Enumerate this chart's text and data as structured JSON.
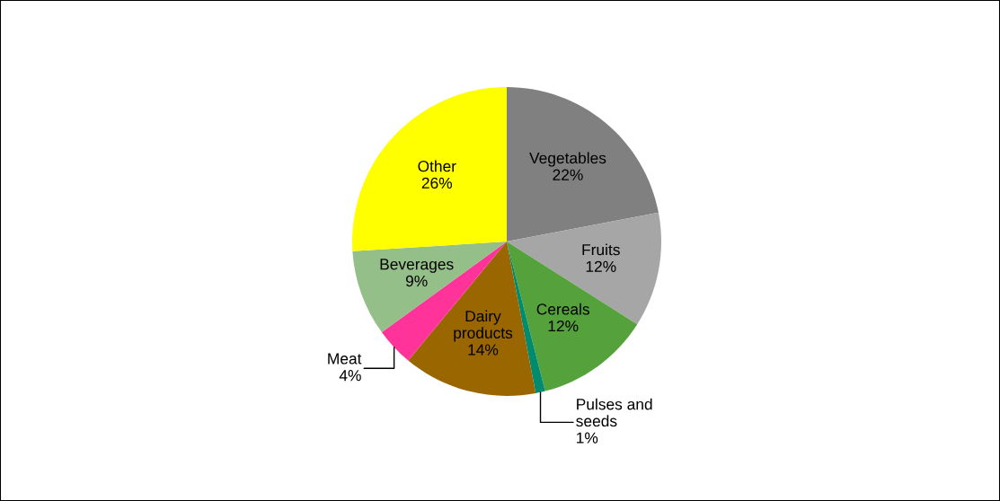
{
  "chart_data": {
    "type": "pie",
    "categories": [
      "Vegetables",
      "Fruits",
      "Cereals",
      "Pulses and seeds",
      "Dairy products",
      "Meat",
      "Beverages",
      "Other"
    ],
    "values": [
      22,
      12,
      12,
      1,
      14,
      4,
      9,
      26
    ],
    "value_labels": [
      "22%",
      "12%",
      "12%",
      "1%",
      "14%",
      "4%",
      "9%",
      "26%"
    ],
    "colors": [
      "#808080",
      "#a6a6a6",
      "#55a23c",
      "#008a6e",
      "#996600",
      "#ff3399",
      "#94bf88",
      "#ffff00"
    ],
    "legend": false
  }
}
